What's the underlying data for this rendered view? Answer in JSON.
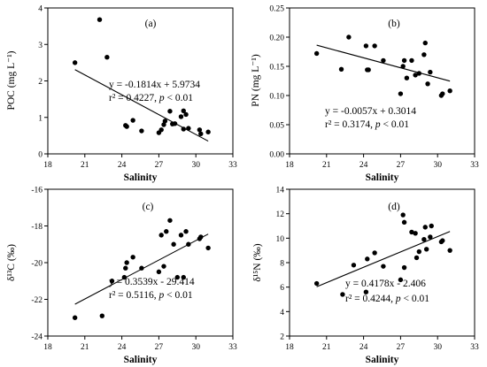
{
  "chart_data": [
    {
      "type": "scatter",
      "panel_label": "(a)",
      "xlabel": "Salinity",
      "ylabel": "POC (mg L⁻¹)",
      "xlim": [
        18,
        33
      ],
      "ylim": [
        0,
        4
      ],
      "xticks": [
        18,
        21,
        24,
        27,
        30,
        33
      ],
      "yticks": [
        0,
        1,
        2,
        3,
        4
      ],
      "ytick_labels": [
        "0",
        "1",
        "2",
        "3",
        "4"
      ],
      "equation": "y = -0.1814x + 5.9734",
      "r2": "r² = 0.4227, p < 0.01",
      "fit": {
        "slope": -0.1814,
        "intercept": 5.9734,
        "x_range": [
          20.2,
          31.0
        ]
      },
      "points": [
        {
          "x": 20.2,
          "y": 2.5
        },
        {
          "x": 22.2,
          "y": 3.68
        },
        {
          "x": 22.8,
          "y": 2.65
        },
        {
          "x": 24.3,
          "y": 0.78
        },
        {
          "x": 24.4,
          "y": 0.75
        },
        {
          "x": 24.9,
          "y": 0.92
        },
        {
          "x": 25.6,
          "y": 0.63
        },
        {
          "x": 27.0,
          "y": 0.58
        },
        {
          "x": 27.2,
          "y": 0.66
        },
        {
          "x": 27.4,
          "y": 0.8
        },
        {
          "x": 27.5,
          "y": 0.9
        },
        {
          "x": 27.9,
          "y": 1.17
        },
        {
          "x": 28.1,
          "y": 0.82
        },
        {
          "x": 28.3,
          "y": 0.83
        },
        {
          "x": 28.8,
          "y": 1.02
        },
        {
          "x": 29.0,
          "y": 0.68
        },
        {
          "x": 29.0,
          "y": 1.18
        },
        {
          "x": 29.2,
          "y": 1.08
        },
        {
          "x": 29.4,
          "y": 0.7
        },
        {
          "x": 30.3,
          "y": 0.66
        },
        {
          "x": 30.4,
          "y": 0.55
        },
        {
          "x": 31.0,
          "y": 0.6
        }
      ]
    },
    {
      "type": "scatter",
      "panel_label": "(b)",
      "xlabel": "Salinity",
      "ylabel": "PN (mg L⁻¹)",
      "xlim": [
        18,
        33
      ],
      "ylim": [
        0,
        0.25
      ],
      "xticks": [
        18,
        21,
        24,
        27,
        30,
        33
      ],
      "yticks": [
        0,
        0.05,
        0.1,
        0.15,
        0.2,
        0.25
      ],
      "ytick_labels": [
        "0.00",
        "0.05",
        "0.10",
        "0.15",
        "0.20",
        "0.25"
      ],
      "equation": "y = -0.0057x + 0.3014",
      "r2": "r² = 0.3174, p < 0.01",
      "fit": {
        "slope": -0.0057,
        "intercept": 0.3014,
        "x_range": [
          20.2,
          31.0
        ]
      },
      "points": [
        {
          "x": 20.2,
          "y": 0.172
        },
        {
          "x": 22.2,
          "y": 0.145
        },
        {
          "x": 22.8,
          "y": 0.2
        },
        {
          "x": 24.2,
          "y": 0.185
        },
        {
          "x": 24.3,
          "y": 0.144
        },
        {
          "x": 24.4,
          "y": 0.144
        },
        {
          "x": 24.9,
          "y": 0.185
        },
        {
          "x": 25.6,
          "y": 0.16
        },
        {
          "x": 27.0,
          "y": 0.103
        },
        {
          "x": 27.2,
          "y": 0.15
        },
        {
          "x": 27.3,
          "y": 0.16
        },
        {
          "x": 27.5,
          "y": 0.13
        },
        {
          "x": 27.9,
          "y": 0.16
        },
        {
          "x": 28.2,
          "y": 0.135
        },
        {
          "x": 28.5,
          "y": 0.138
        },
        {
          "x": 28.9,
          "y": 0.17
        },
        {
          "x": 29.0,
          "y": 0.19
        },
        {
          "x": 29.2,
          "y": 0.12
        },
        {
          "x": 29.4,
          "y": 0.14
        },
        {
          "x": 30.3,
          "y": 0.1
        },
        {
          "x": 30.4,
          "y": 0.103
        },
        {
          "x": 31.0,
          "y": 0.108
        }
      ]
    },
    {
      "type": "scatter",
      "panel_label": "(c)",
      "xlabel": "Salinity",
      "ylabel": "δ¹³C (‰)",
      "xlim": [
        18,
        33
      ],
      "ylim": [
        -24,
        -16
      ],
      "xticks": [
        18,
        21,
        24,
        27,
        30,
        33
      ],
      "yticks": [
        -24,
        -22,
        -20,
        -18,
        -16
      ],
      "ytick_labels": [
        "-24",
        "-22",
        "-20",
        "-18",
        "-16"
      ],
      "equation": "y = 0.3539x - 29.414",
      "r2": "r² = 0.5116, p < 0.01",
      "fit": {
        "slope": 0.3539,
        "intercept": -29.414,
        "x_range": [
          20.2,
          31.0
        ]
      },
      "points": [
        {
          "x": 20.2,
          "y": -23.0
        },
        {
          "x": 22.4,
          "y": -22.9
        },
        {
          "x": 23.2,
          "y": -21.0
        },
        {
          "x": 24.2,
          "y": -20.8
        },
        {
          "x": 24.3,
          "y": -20.3
        },
        {
          "x": 24.4,
          "y": -20.0
        },
        {
          "x": 24.9,
          "y": -19.7
        },
        {
          "x": 25.6,
          "y": -20.3
        },
        {
          "x": 27.0,
          "y": -20.5
        },
        {
          "x": 27.2,
          "y": -18.5
        },
        {
          "x": 27.4,
          "y": -20.2
        },
        {
          "x": 27.6,
          "y": -18.3
        },
        {
          "x": 27.9,
          "y": -17.7
        },
        {
          "x": 28.2,
          "y": -19.0
        },
        {
          "x": 28.5,
          "y": -20.8
        },
        {
          "x": 28.8,
          "y": -18.5
        },
        {
          "x": 29.0,
          "y": -20.8
        },
        {
          "x": 29.2,
          "y": -18.3
        },
        {
          "x": 29.4,
          "y": -19.0
        },
        {
          "x": 30.3,
          "y": -18.7
        },
        {
          "x": 30.4,
          "y": -18.6
        },
        {
          "x": 31.0,
          "y": -19.2
        }
      ]
    },
    {
      "type": "scatter",
      "panel_label": "(d)",
      "xlabel": "Salinity",
      "ylabel": "δ¹⁵N (‰)",
      "xlim": [
        18,
        33
      ],
      "ylim": [
        2,
        14
      ],
      "xticks": [
        18,
        21,
        24,
        27,
        30,
        33
      ],
      "yticks": [
        2,
        4,
        6,
        8,
        10,
        12,
        14
      ],
      "ytick_labels": [
        "2",
        "4",
        "6",
        "8",
        "10",
        "12",
        "14"
      ],
      "equation": "y = 0.4178x - 2.406",
      "r2": "r² = 0.4244, p < 0.01",
      "fit": {
        "slope": 0.4178,
        "intercept": -2.406,
        "x_range": [
          20.2,
          31.0
        ]
      },
      "points": [
        {
          "x": 20.2,
          "y": 6.3
        },
        {
          "x": 22.3,
          "y": 5.4
        },
        {
          "x": 23.2,
          "y": 7.8
        },
        {
          "x": 24.2,
          "y": 5.6
        },
        {
          "x": 24.3,
          "y": 8.3
        },
        {
          "x": 24.9,
          "y": 8.8
        },
        {
          "x": 25.6,
          "y": 7.7
        },
        {
          "x": 27.0,
          "y": 6.6
        },
        {
          "x": 27.2,
          "y": 11.9
        },
        {
          "x": 27.3,
          "y": 11.3
        },
        {
          "x": 27.3,
          "y": 7.6
        },
        {
          "x": 27.9,
          "y": 10.5
        },
        {
          "x": 28.2,
          "y": 10.4
        },
        {
          "x": 28.3,
          "y": 8.4
        },
        {
          "x": 28.5,
          "y": 8.9
        },
        {
          "x": 28.9,
          "y": 9.9
        },
        {
          "x": 29.0,
          "y": 10.9
        },
        {
          "x": 29.1,
          "y": 9.1
        },
        {
          "x": 29.4,
          "y": 10.1
        },
        {
          "x": 29.5,
          "y": 11.0
        },
        {
          "x": 30.3,
          "y": 9.7
        },
        {
          "x": 30.4,
          "y": 9.8
        },
        {
          "x": 31.0,
          "y": 9.0
        }
      ]
    }
  ]
}
